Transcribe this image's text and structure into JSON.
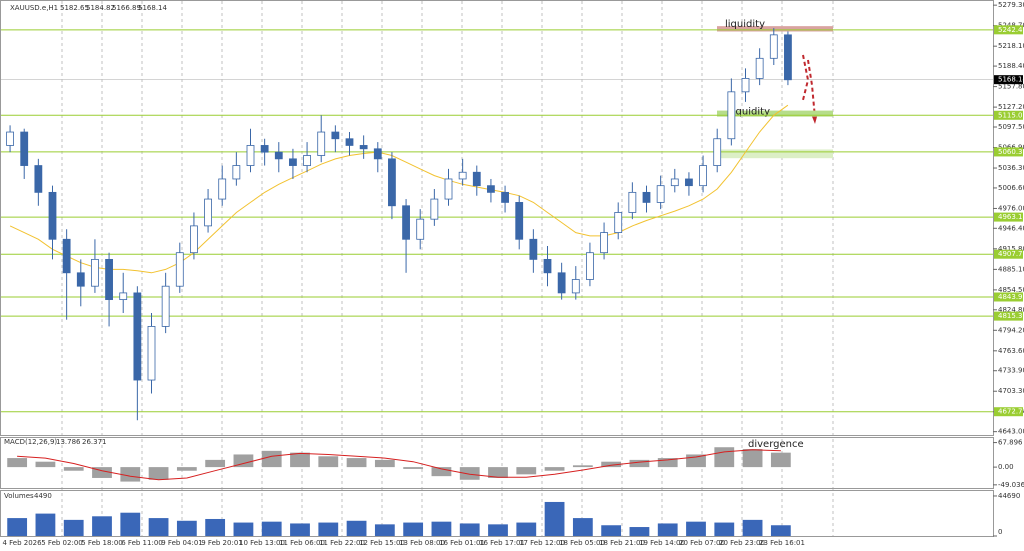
{
  "chart_data": {
    "type": "candlestick",
    "header": {
      "symbol": "XAUUSD.e,H1",
      "ohlc": [
        5182.65,
        5184.82,
        5166.89,
        5168.14
      ]
    },
    "open": [
      5070,
      5090,
      5040,
      5000,
      4930,
      4880,
      4860,
      4900,
      4840,
      4850,
      4720,
      4800,
      4860,
      4910,
      4950,
      4990,
      5020,
      5040,
      5070,
      5060,
      5050,
      5040,
      5055,
      5090,
      5080,
      5070,
      5065,
      5050,
      4980,
      4930,
      4960,
      4990,
      5020,
      5030,
      5010,
      5000,
      4985,
      4930,
      4900,
      4880,
      4850,
      4870,
      4910,
      4940,
      4970,
      5000,
      4985,
      5010,
      5020,
      5010,
      5040,
      5080,
      5150,
      5170,
      5200,
      5235
    ],
    "high": [
      5100,
      5095,
      5050,
      5010,
      4945,
      4900,
      4930,
      4910,
      4880,
      4860,
      4820,
      4880,
      4925,
      4970,
      5005,
      5040,
      5060,
      5095,
      5080,
      5075,
      5065,
      5075,
      5115,
      5100,
      5090,
      5085,
      5075,
      5060,
      4990,
      4975,
      5005,
      5035,
      5050,
      5040,
      5020,
      5010,
      4995,
      4945,
      4920,
      4895,
      4890,
      4925,
      4955,
      4985,
      5015,
      5010,
      5025,
      5035,
      5030,
      5055,
      5095,
      5170,
      5185,
      5215,
      5245,
      5240
    ],
    "low": [
      5060,
      5020,
      4980,
      4900,
      4810,
      4830,
      4850,
      4800,
      4820,
      4660,
      4700,
      4790,
      4850,
      4900,
      4940,
      4980,
      5010,
      5030,
      5040,
      5030,
      5020,
      5030,
      5045,
      5060,
      5055,
      5050,
      5030,
      4960,
      4880,
      4915,
      4950,
      4980,
      5010,
      4995,
      4985,
      4970,
      4915,
      4880,
      4860,
      4840,
      4840,
      4860,
      4900,
      4930,
      4960,
      4970,
      4975,
      5000,
      4995,
      5000,
      5030,
      5070,
      5135,
      5160,
      5190,
      5160
    ],
    "close": [
      5090,
      5040,
      5000,
      4930,
      4880,
      4860,
      4900,
      4840,
      4850,
      4720,
      4800,
      4860,
      4910,
      4950,
      4990,
      5020,
      5040,
      5070,
      5060,
      5050,
      5040,
      5055,
      5090,
      5080,
      5070,
      5065,
      5050,
      4980,
      4930,
      4960,
      4990,
      5020,
      5030,
      5010,
      5000,
      4985,
      4930,
      4900,
      4880,
      4850,
      4870,
      4910,
      4940,
      4970,
      5000,
      4985,
      5010,
      5020,
      5010,
      5040,
      5080,
      5150,
      5170,
      5200,
      5235,
      5168
    ],
    "candle_color": "#3a67a8",
    "ma": {
      "color": "#f2c230",
      "values": [
        4950,
        4940,
        4930,
        4915,
        4905,
        4895,
        4888,
        4885,
        4885,
        4883,
        4880,
        4885,
        4895,
        4910,
        4930,
        4950,
        4970,
        4985,
        5000,
        5012,
        5022,
        5032,
        5042,
        5050,
        5055,
        5058,
        5060,
        5055,
        5045,
        5035,
        5025,
        5018,
        5012,
        5008,
        5004,
        5000,
        4995,
        4985,
        4970,
        4955,
        4940,
        4935,
        4935,
        4940,
        4950,
        4958,
        4965,
        4972,
        4980,
        4990,
        5005,
        5030,
        5060,
        5090,
        5115,
        5130
      ]
    },
    "ylim": [
      4638,
      5287
    ],
    "yticks": [
      {
        "value": 5279.3,
        "label": "5279.30"
      },
      {
        "value": 5248.7,
        "label": "5248.70"
      },
      {
        "value": 5218.1,
        "label": "5218.10"
      },
      {
        "value": 5188.4,
        "label": "5188.40"
      },
      {
        "value": 5157.8,
        "label": "5157.80"
      },
      {
        "value": 5127.2,
        "label": "5127.20"
      },
      {
        "value": 5097.5,
        "label": "5097.50"
      },
      {
        "value": 5066.9,
        "label": "5066.90"
      },
      {
        "value": 5036.3,
        "label": "5036.30"
      },
      {
        "value": 5006.6,
        "label": "5006.60"
      },
      {
        "value": 4976,
        "label": "4976.00"
      },
      {
        "value": 4946.4,
        "label": "4946.40"
      },
      {
        "value": 4915.8,
        "label": "4915.80"
      },
      {
        "value": 4885.1,
        "label": "4885.10"
      },
      {
        "value": 4854.5,
        "label": "4854.50"
      },
      {
        "value": 4824.8,
        "label": "4824.80"
      },
      {
        "value": 4794.2,
        "label": "4794.20"
      },
      {
        "value": 4763.6,
        "label": "4763.60"
      },
      {
        "value": 4733.9,
        "label": "4733.90"
      },
      {
        "value": 4703.3,
        "label": "4703.30"
      },
      {
        "value": 4672.7,
        "label": "4672.70"
      },
      {
        "value": 4643,
        "label": "4643.00"
      }
    ],
    "levels": [
      5242.49,
      5115.01,
      5060.32,
      4963.11,
      4907.72,
      {
        "value": 4843.9,
        "label": "4843.90"
      },
      4815.37,
      4672.75
    ],
    "level_color": "#9acd32",
    "current_price": 5168.14,
    "zones": [
      {
        "range": [
          5240,
          5248
        ],
        "color": "#d9a3a0",
        "label": "liquidity"
      },
      {
        "range": [
          5113,
          5122
        ],
        "color": "#b6dd8a",
        "label": "liquidity"
      },
      {
        "range": [
          5051,
          5064
        ],
        "color": "#dcefc6"
      }
    ],
    "time_labels": [
      "4 Feb 2026",
      "5 Feb 02:00",
      "5 Feb 18:00",
      "6 Feb 11:00",
      "9 Feb 04:01",
      "9 Feb 20:01",
      "10 Feb 13:00",
      "11 Feb 06:00",
      "11 Feb 22:00",
      "12 Feb 15:00",
      "13 Feb 08:00",
      "16 Feb 01:01",
      "16 Feb 17:01",
      "17 Feb 12:00",
      "18 Feb 05:00",
      "18 Feb 21:00",
      "19 Feb 14:00",
      "20 Feb 07:00",
      "20 Feb 23:00",
      "23 Feb 16:01"
    ],
    "macd": {
      "name": "MACD(12,26,9)",
      "readout": [
        13.786,
        26.371
      ],
      "annotation": "divergence",
      "histogram": [
        25,
        15,
        -10,
        -30,
        -40,
        -35,
        -10,
        20,
        35,
        45,
        40,
        30,
        25,
        20,
        -5,
        -25,
        -35,
        -30,
        -20,
        -10,
        5,
        15,
        20,
        25,
        35,
        55,
        50,
        40
      ],
      "signal": [
        30,
        25,
        10,
        -10,
        -25,
        -35,
        -30,
        -10,
        10,
        30,
        38,
        35,
        30,
        25,
        15,
        -5,
        -20,
        -28,
        -28,
        -20,
        -8,
        5,
        14,
        20,
        28,
        42,
        48,
        45
      ],
      "hist_color": "#a0a0a0",
      "signal_color": "#d62020",
      "ylim": [
        -55,
        75
      ],
      "yticks": [
        67.896,
        {
          "value": 0,
          "label": "0.00"
        },
        -49.036
      ]
    },
    "volume": {
      "name": "Volumes",
      "readout": 4490,
      "color": "#3a67b8",
      "values": [
        20000,
        25000,
        18000,
        22000,
        26000,
        20000,
        17000,
        19000,
        15000,
        16000,
        14000,
        15000,
        17000,
        13000,
        15000,
        16000,
        14000,
        13000,
        15000,
        38000,
        20000,
        12000,
        10000,
        14000,
        16000,
        15000,
        18000,
        12000
      ],
      "ylim": [
        0,
        48000
      ],
      "yticks": [
        44690,
        0
      ]
    }
  }
}
